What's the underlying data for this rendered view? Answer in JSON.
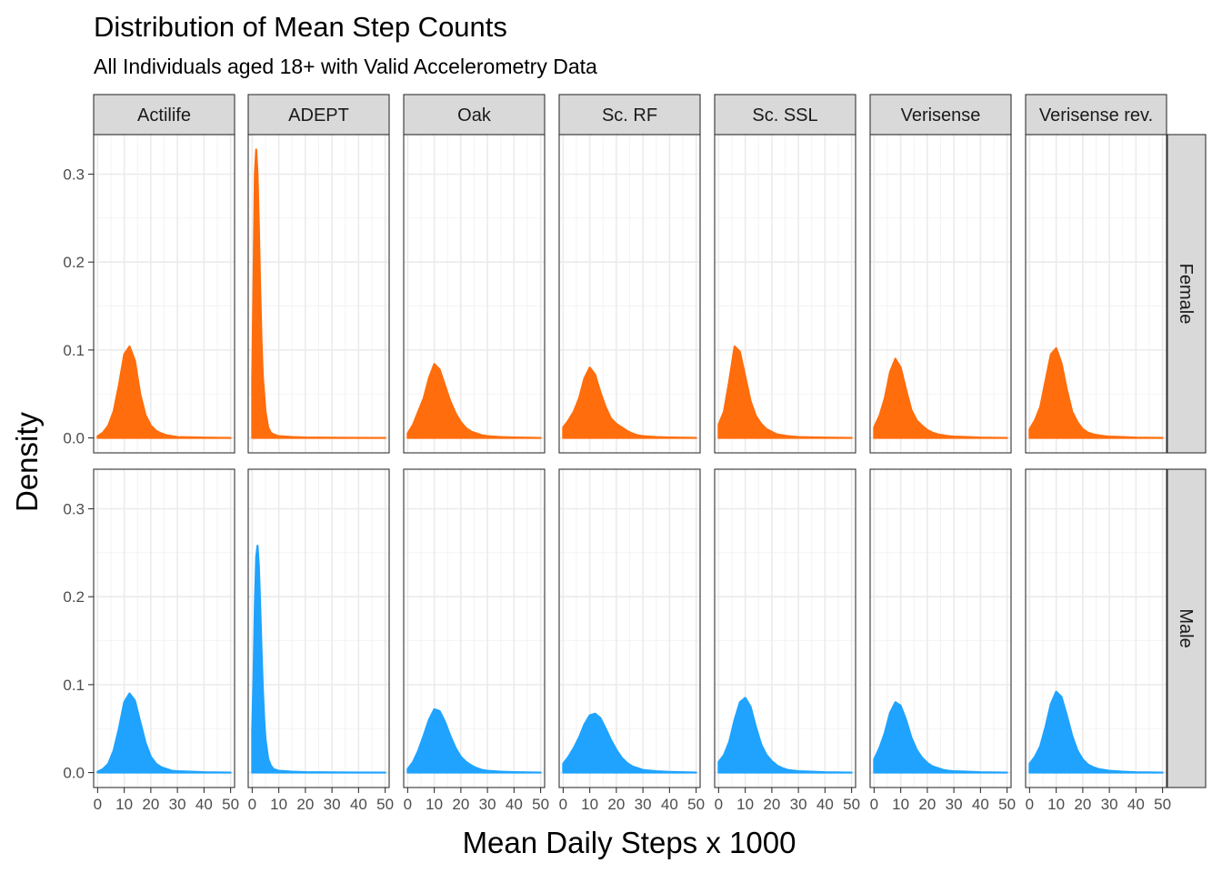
{
  "chart_data": {
    "type": "area",
    "title": "Distribution of Mean Step Counts",
    "subtitle": "All Individuals aged 18+ with Valid Accelerometry Data",
    "xlabel": "Mean Daily Steps x 1000",
    "ylabel": "Density",
    "xlim": [
      -1.5,
      51.5
    ],
    "ylim": [
      -0.017,
      0.345
    ],
    "x_ticks": [
      0,
      10,
      20,
      30,
      40,
      50
    ],
    "x_tick_labels": [
      "0",
      "10",
      "20",
      "30",
      "40",
      "50"
    ],
    "y_ticks": [
      0.0,
      0.1,
      0.2,
      0.3
    ],
    "y_tick_labels": [
      "0.0",
      "0.1",
      "0.2",
      "0.3"
    ],
    "grid": true,
    "legend": "none",
    "colors": {
      "Female": "#ff6d0c",
      "Male": "#1fa3ff"
    },
    "columns": [
      "Actilife",
      "ADEPT",
      "Oak",
      "Sc. RF",
      "Sc. SSL",
      "Verisense",
      "Verisense rev."
    ],
    "rows": [
      "Female",
      "Male"
    ],
    "panels": [
      {
        "column": "Actilife",
        "row": "Female",
        "x": [
          0,
          2,
          4,
          6,
          8,
          10,
          12,
          14,
          16,
          18,
          20,
          22,
          24,
          26,
          30,
          40,
          50
        ],
        "y": [
          0.002,
          0.006,
          0.014,
          0.03,
          0.06,
          0.095,
          0.104,
          0.088,
          0.05,
          0.026,
          0.014,
          0.008,
          0.005,
          0.003,
          0.001,
          0.0003,
          0.0
        ]
      },
      {
        "column": "ADEPT",
        "row": "Female",
        "x": [
          0,
          0.5,
          1,
          1.5,
          2,
          2.5,
          3,
          3.5,
          4,
          5,
          6,
          7,
          8,
          10,
          15,
          20,
          30,
          50
        ],
        "y": [
          0.065,
          0.18,
          0.3,
          0.328,
          0.3,
          0.24,
          0.17,
          0.11,
          0.07,
          0.03,
          0.012,
          0.006,
          0.004,
          0.002,
          0.001,
          0.0005,
          0.0002,
          0.0
        ]
      },
      {
        "column": "Oak",
        "row": "Female",
        "x": [
          0,
          2,
          4,
          6,
          8,
          10,
          12,
          14,
          16,
          18,
          20,
          22,
          24,
          26,
          28,
          30,
          35,
          40,
          50
        ],
        "y": [
          0.005,
          0.015,
          0.03,
          0.045,
          0.068,
          0.084,
          0.078,
          0.06,
          0.042,
          0.028,
          0.018,
          0.011,
          0.007,
          0.005,
          0.003,
          0.002,
          0.001,
          0.0005,
          0.0
        ]
      },
      {
        "column": "Sc. RF",
        "row": "Female",
        "x": [
          0,
          2,
          4,
          6,
          8,
          10,
          12,
          14,
          16,
          18,
          20,
          22,
          24,
          26,
          28,
          30,
          35,
          40,
          50
        ],
        "y": [
          0.012,
          0.02,
          0.03,
          0.045,
          0.068,
          0.08,
          0.072,
          0.052,
          0.035,
          0.022,
          0.016,
          0.012,
          0.008,
          0.005,
          0.003,
          0.002,
          0.001,
          0.0005,
          0.0
        ]
      },
      {
        "column": "Sc. SSL",
        "row": "Female",
        "x": [
          0,
          2,
          4,
          6,
          8,
          10,
          12,
          14,
          16,
          18,
          20,
          22,
          26,
          30,
          40,
          50
        ],
        "y": [
          0.015,
          0.03,
          0.065,
          0.104,
          0.098,
          0.07,
          0.042,
          0.025,
          0.016,
          0.01,
          0.007,
          0.004,
          0.002,
          0.001,
          0.0003,
          0.0
        ]
      },
      {
        "column": "Verisense",
        "row": "Female",
        "x": [
          0,
          2,
          4,
          6,
          8,
          10,
          12,
          14,
          16,
          18,
          20,
          22,
          24,
          26,
          28,
          30,
          35,
          40,
          50
        ],
        "y": [
          0.012,
          0.025,
          0.045,
          0.075,
          0.09,
          0.08,
          0.055,
          0.032,
          0.02,
          0.014,
          0.009,
          0.006,
          0.004,
          0.003,
          0.002,
          0.0015,
          0.001,
          0.0004,
          0.0
        ]
      },
      {
        "column": "Verisense rev.",
        "row": "Female",
        "x": [
          0,
          2,
          4,
          6,
          8,
          10,
          12,
          14,
          16,
          18,
          20,
          22,
          24,
          26,
          28,
          30,
          35,
          40,
          50
        ],
        "y": [
          0.01,
          0.02,
          0.035,
          0.065,
          0.095,
          0.102,
          0.085,
          0.055,
          0.03,
          0.018,
          0.01,
          0.006,
          0.004,
          0.003,
          0.002,
          0.0015,
          0.001,
          0.0004,
          0.0
        ]
      },
      {
        "column": "Actilife",
        "row": "Male",
        "x": [
          0,
          2,
          4,
          6,
          8,
          10,
          12,
          14,
          16,
          18,
          20,
          22,
          24,
          26,
          28,
          30,
          35,
          40,
          50
        ],
        "y": [
          0.001,
          0.004,
          0.01,
          0.025,
          0.05,
          0.08,
          0.09,
          0.082,
          0.058,
          0.034,
          0.018,
          0.01,
          0.006,
          0.004,
          0.002,
          0.0015,
          0.001,
          0.0004,
          0.0
        ]
      },
      {
        "column": "ADEPT",
        "row": "Male",
        "x": [
          0,
          0.5,
          1,
          1.5,
          2,
          2.5,
          3,
          3.5,
          4,
          4.5,
          5,
          6,
          7,
          8,
          10,
          15,
          20,
          30,
          50
        ],
        "y": [
          0.048,
          0.11,
          0.19,
          0.245,
          0.258,
          0.235,
          0.19,
          0.14,
          0.095,
          0.06,
          0.038,
          0.016,
          0.008,
          0.004,
          0.002,
          0.001,
          0.0005,
          0.0002,
          0.0
        ]
      },
      {
        "column": "Oak",
        "row": "Male",
        "x": [
          0,
          2,
          4,
          6,
          8,
          10,
          12,
          14,
          16,
          18,
          20,
          22,
          24,
          26,
          28,
          30,
          35,
          40,
          50
        ],
        "y": [
          0.004,
          0.012,
          0.025,
          0.042,
          0.06,
          0.072,
          0.07,
          0.058,
          0.042,
          0.028,
          0.018,
          0.012,
          0.008,
          0.005,
          0.003,
          0.002,
          0.001,
          0.0005,
          0.0
        ]
      },
      {
        "column": "Sc. RF",
        "row": "Male",
        "x": [
          0,
          2,
          4,
          6,
          8,
          10,
          12,
          14,
          16,
          18,
          20,
          22,
          24,
          26,
          28,
          30,
          35,
          40,
          50
        ],
        "y": [
          0.01,
          0.018,
          0.028,
          0.04,
          0.055,
          0.065,
          0.067,
          0.062,
          0.05,
          0.037,
          0.026,
          0.017,
          0.011,
          0.007,
          0.005,
          0.003,
          0.0015,
          0.0008,
          0.0
        ]
      },
      {
        "column": "Sc. SSL",
        "row": "Male",
        "x": [
          0,
          2,
          4,
          6,
          8,
          10,
          12,
          14,
          16,
          18,
          20,
          22,
          24,
          26,
          30,
          35,
          40,
          50
        ],
        "y": [
          0.012,
          0.02,
          0.035,
          0.06,
          0.08,
          0.085,
          0.075,
          0.052,
          0.032,
          0.02,
          0.013,
          0.008,
          0.005,
          0.003,
          0.0015,
          0.001,
          0.0004,
          0.0
        ]
      },
      {
        "column": "Verisense",
        "row": "Male",
        "x": [
          0,
          2,
          4,
          6,
          8,
          10,
          12,
          14,
          16,
          18,
          20,
          22,
          24,
          26,
          28,
          30,
          35,
          40,
          50
        ],
        "y": [
          0.015,
          0.028,
          0.045,
          0.068,
          0.08,
          0.076,
          0.06,
          0.04,
          0.026,
          0.017,
          0.011,
          0.007,
          0.005,
          0.003,
          0.002,
          0.0015,
          0.001,
          0.0004,
          0.0
        ]
      },
      {
        "column": "Verisense rev.",
        "row": "Male",
        "x": [
          0,
          2,
          4,
          6,
          8,
          10,
          12,
          14,
          16,
          18,
          20,
          22,
          24,
          26,
          28,
          30,
          35,
          40,
          50
        ],
        "y": [
          0.01,
          0.018,
          0.03,
          0.052,
          0.078,
          0.092,
          0.086,
          0.065,
          0.042,
          0.025,
          0.015,
          0.009,
          0.006,
          0.004,
          0.003,
          0.002,
          0.001,
          0.0004,
          0.0
        ]
      }
    ]
  }
}
